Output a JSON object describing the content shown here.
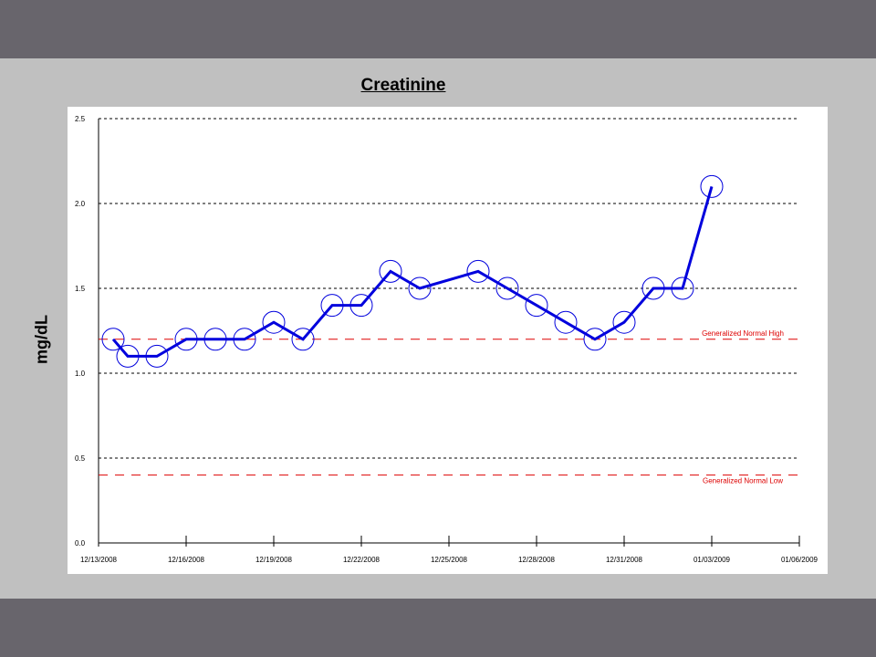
{
  "chart_data": {
    "type": "line",
    "title": "Creatinine",
    "ylabel": "mg/dL",
    "xlabel": "",
    "ylim": [
      0.0,
      2.5
    ],
    "xlim": [
      "2008-12-13",
      "2009-01-06"
    ],
    "y_ticks": [
      "0.0",
      "0.5",
      "1.0",
      "1.5",
      "2.0",
      "2.5"
    ],
    "x_ticks": [
      {
        "date": "2008-12-13",
        "label": "12/13/2008"
      },
      {
        "date": "2008-12-16",
        "label": "12/16/2008"
      },
      {
        "date": "2008-12-19",
        "label": "12/19/2008"
      },
      {
        "date": "2008-12-22",
        "label": "12/22/2008"
      },
      {
        "date": "2008-12-25",
        "label": "12/25/2008"
      },
      {
        "date": "2008-12-28",
        "label": "12/28/2008"
      },
      {
        "date": "2008-12-31",
        "label": "12/31/2008"
      },
      {
        "date": "2009-01-03",
        "label": "01/03/2009"
      },
      {
        "date": "2009-01-06",
        "label": "01/06/2009"
      }
    ],
    "grid": true,
    "series": [
      {
        "color": "#0000dd",
        "points": [
          {
            "x": "2008-12-13T12:00",
            "y": 1.2
          },
          {
            "x": "2008-12-14T00:00",
            "y": 1.1
          },
          {
            "x": "2008-12-15T00:00",
            "y": 1.1
          },
          {
            "x": "2008-12-16T00:00",
            "y": 1.2
          },
          {
            "x": "2008-12-17T00:00",
            "y": 1.2
          },
          {
            "x": "2008-12-18T00:00",
            "y": 1.2
          },
          {
            "x": "2008-12-19T00:00",
            "y": 1.3
          },
          {
            "x": "2008-12-20T00:00",
            "y": 1.2
          },
          {
            "x": "2008-12-21T00:00",
            "y": 1.4
          },
          {
            "x": "2008-12-22T00:00",
            "y": 1.4
          },
          {
            "x": "2008-12-23T00:00",
            "y": 1.6
          },
          {
            "x": "2008-12-24T00:00",
            "y": 1.5
          },
          {
            "x": "2008-12-26T00:00",
            "y": 1.6
          },
          {
            "x": "2008-12-27T00:00",
            "y": 1.5
          },
          {
            "x": "2008-12-28T00:00",
            "y": 1.4
          },
          {
            "x": "2008-12-29T00:00",
            "y": 1.3
          },
          {
            "x": "2008-12-30T00:00",
            "y": 1.2
          },
          {
            "x": "2008-12-31T00:00",
            "y": 1.3
          },
          {
            "x": "2009-01-01T00:00",
            "y": 1.5
          },
          {
            "x": "2009-01-02T00:00",
            "y": 1.5
          },
          {
            "x": "2009-01-03T00:00",
            "y": 2.1
          }
        ]
      }
    ],
    "reference_lines": [
      {
        "label": "Generalized Normal High",
        "y": 1.2,
        "color": "#dd0000"
      },
      {
        "label": "Generalized Normal Low",
        "y": 0.4,
        "color": "#dd0000"
      }
    ]
  }
}
